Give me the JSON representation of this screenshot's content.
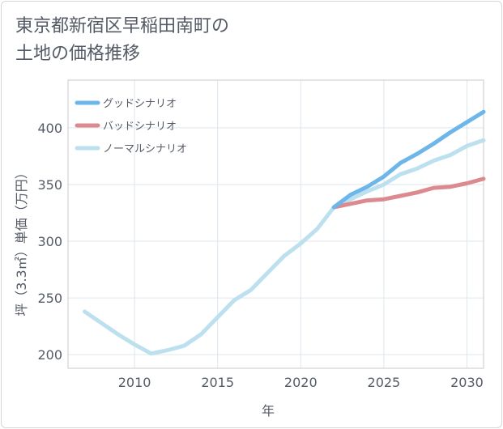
{
  "title_lines": [
    "東京都新宿区早稲田南町の",
    "土地の価格推移"
  ],
  "chart_data": {
    "type": "line",
    "title": "東京都新宿区早稲田南町の土地の価格推移",
    "xlabel": "年",
    "ylabel": "坪（3.3㎡）単価（万円）",
    "xlim": [
      2006,
      2031
    ],
    "ylim": [
      188,
      442
    ],
    "x_ticks": [
      2010,
      2015,
      2020,
      2025,
      2030
    ],
    "y_ticks": [
      200,
      250,
      300,
      350,
      400
    ],
    "grid": true,
    "legend_position": "top-left",
    "series": [
      {
        "name": "グッドシナリオ",
        "color": "#6cb6ea",
        "x": [
          2022,
          2023,
          2024,
          2025,
          2026,
          2027,
          2028,
          2029,
          2030,
          2031
        ],
        "y": [
          330,
          341,
          348,
          357,
          369,
          377,
          386,
          396,
          405,
          414
        ]
      },
      {
        "name": "バッドシナリオ",
        "color": "#dc8a90",
        "x": [
          2022,
          2023,
          2024,
          2025,
          2026,
          2027,
          2028,
          2029,
          2030,
          2031
        ],
        "y": [
          330,
          333,
          336,
          337,
          340,
          343,
          347,
          348,
          351,
          355
        ]
      },
      {
        "name": "ノーマルシナリオ",
        "color": "#bde0ef",
        "x": [
          2007,
          2008,
          2009,
          2010,
          2011,
          2012,
          2013,
          2014,
          2015,
          2016,
          2017,
          2018,
          2019,
          2020,
          2021,
          2022,
          2023,
          2024,
          2025,
          2026,
          2027,
          2028,
          2029,
          2030,
          2031
        ],
        "y": [
          238,
          228,
          218,
          209,
          201,
          204,
          208,
          218,
          233,
          248,
          257,
          272,
          287,
          298,
          311,
          330,
          337,
          344,
          350,
          359,
          364,
          371,
          376,
          384,
          389
        ]
      }
    ]
  }
}
